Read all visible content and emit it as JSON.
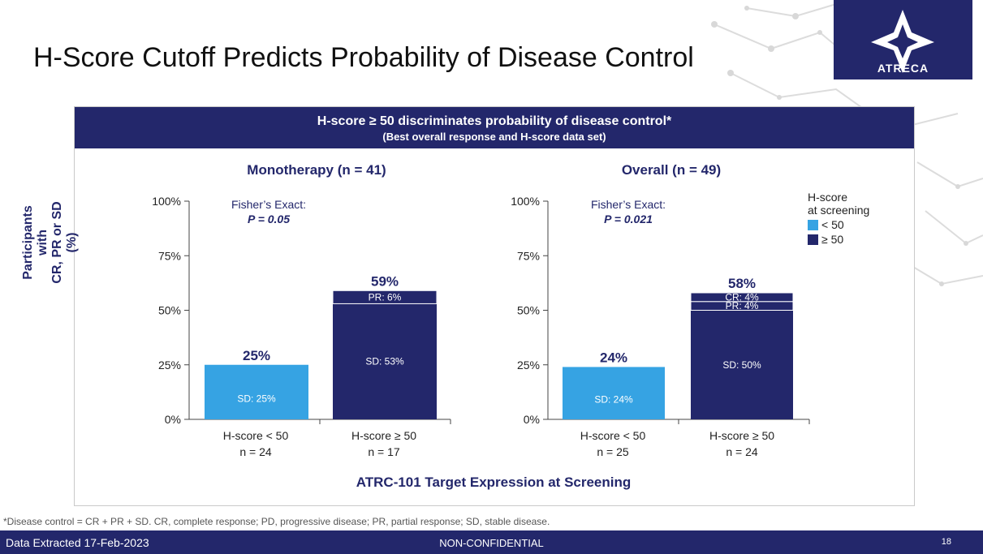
{
  "page": {
    "title": "H-Score Cutoff Predicts Probability of Disease Control",
    "logo_text": "ATRECA",
    "banner_main": "H-score ≥ 50 discriminates probability of disease control*",
    "banner_sub": "(Best overall response and H-score data set)",
    "y_label_line1": "Participants with",
    "y_label_line2": "CR, PR or SD (%)",
    "x_title": "ATRC-101 Target Expression at Screening",
    "footnote": "*Disease control = CR + PR + SD. CR, complete response; PD, progressive disease; PR, partial response; SD, stable disease.",
    "footer_left": "Data Extracted 17-Feb-2023",
    "footer_center": "NON-CONFIDENTIAL",
    "footer_right": "18",
    "colors": {
      "navy": "#23276b",
      "light_blue": "#36a3e3"
    }
  },
  "legend": {
    "title_line1": "H-score",
    "title_line2": "at screening",
    "items": [
      {
        "label": "< 50",
        "color": "#36a3e3"
      },
      {
        "label": "≥ 50",
        "color": "#23276b"
      }
    ]
  },
  "chart_data": [
    {
      "type": "bar",
      "stacked": true,
      "title": "Monotherapy (n = 41)",
      "annotation_line1": "Fisher’s Exact:",
      "annotation_line2": "P = 0.05",
      "y_ticks": [
        "0%",
        "25%",
        "50%",
        "75%",
        "100%"
      ],
      "ylim": [
        0,
        100
      ],
      "categories": [
        {
          "label": "H-score < 50",
          "n": "n = 24",
          "total": 25,
          "total_label": "25%",
          "segments": [
            {
              "name": "SD",
              "value": 25,
              "label": "SD: 25%"
            }
          ]
        },
        {
          "label": "H-score ≥ 50",
          "n": "n = 17",
          "total": 59,
          "total_label": "59%",
          "segments": [
            {
              "name": "SD",
              "value": 53,
              "label": "SD: 53%"
            },
            {
              "name": "PR",
              "value": 6,
              "label": "PR: 6%"
            }
          ]
        }
      ]
    },
    {
      "type": "bar",
      "stacked": true,
      "title": "Overall (n = 49)",
      "annotation_line1": "Fisher’s Exact:",
      "annotation_line2": "P = 0.021",
      "y_ticks": [
        "0%",
        "25%",
        "50%",
        "75%",
        "100%"
      ],
      "ylim": [
        0,
        100
      ],
      "categories": [
        {
          "label": "H-score < 50",
          "n": "n = 25",
          "total": 24,
          "total_label": "24%",
          "segments": [
            {
              "name": "SD",
              "value": 24,
              "label": "SD: 24%"
            }
          ]
        },
        {
          "label": "H-score ≥ 50",
          "n": "n = 24",
          "total": 58,
          "total_label": "58%",
          "segments": [
            {
              "name": "SD",
              "value": 50,
              "label": "SD: 50%"
            },
            {
              "name": "PR",
              "value": 4,
              "label": "PR: 4%"
            },
            {
              "name": "CR",
              "value": 4,
              "label": "CR: 4%"
            }
          ]
        }
      ]
    }
  ]
}
